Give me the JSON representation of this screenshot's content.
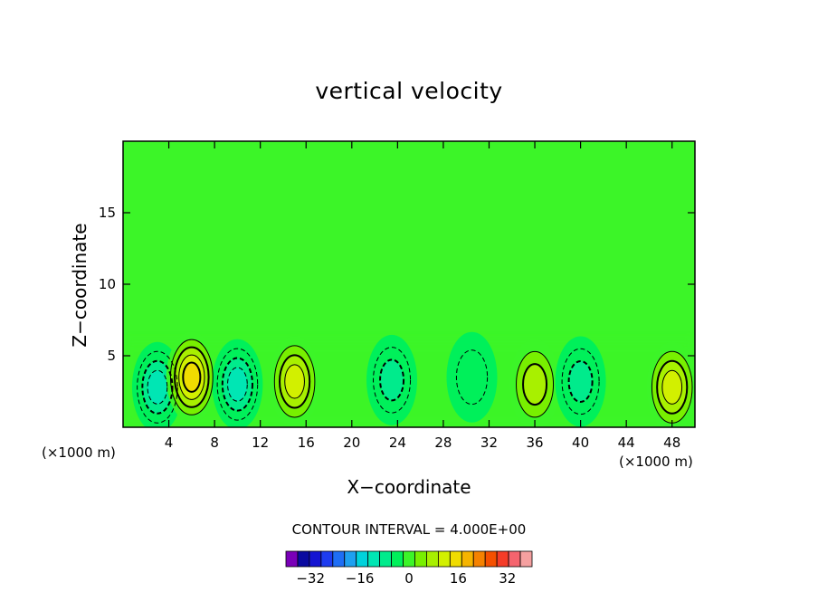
{
  "chart_data": {
    "type": "heatmap",
    "title": "vertical velocity",
    "xlabel": "X−coordinate",
    "ylabel": "Z−coordinate",
    "x_unit": "(×1000 m)",
    "xlim": [
      0,
      50
    ],
    "ylim": [
      0,
      20
    ],
    "xticks": [
      4,
      8,
      12,
      16,
      20,
      24,
      28,
      32,
      36,
      40,
      44,
      48
    ],
    "xtick_labels": [
      "4",
      "8",
      "12",
      "16",
      "20",
      "24",
      "28",
      "32",
      "36",
      "40",
      "44",
      "48"
    ],
    "yticks": [
      5,
      10,
      15
    ],
    "ytick_labels": [
      "5",
      "10",
      "15"
    ],
    "contour_interval_label": "CONTOUR INTERVAL = 4.000E+00",
    "contour_interval": 4,
    "colorbar": {
      "levels": [
        -40,
        -36,
        -32,
        -28,
        -24,
        -20,
        -16,
        -12,
        -8,
        -4,
        0,
        4,
        8,
        12,
        16,
        20,
        24,
        28,
        32,
        36,
        40
      ],
      "colors": [
        "#7a00b8",
        "#0a0aa0",
        "#1414d2",
        "#1e3cf0",
        "#1e6ef5",
        "#1ea0f0",
        "#00d2dc",
        "#00e6b4",
        "#00eb8c",
        "#00f05a",
        "#3cf528",
        "#78f000",
        "#a8f000",
        "#d2f000",
        "#f0dc00",
        "#f5b400",
        "#f58200",
        "#f55000",
        "#f53c28",
        "#f5646e",
        "#f5a0a0"
      ],
      "tick_labels": [
        "−32",
        "−16",
        "0",
        "16",
        "32"
      ],
      "tick_values": [
        -32,
        -16,
        0,
        16,
        32
      ]
    },
    "features": [
      {
        "x": 3,
        "z": 2.8,
        "value": -10
      },
      {
        "x": 6,
        "z": 3.5,
        "value": 14
      },
      {
        "x": 10,
        "z": 3.0,
        "value": -11
      },
      {
        "x": 15,
        "z": 3.2,
        "value": 10
      },
      {
        "x": 23.5,
        "z": 3.3,
        "value": -6
      },
      {
        "x": 30.5,
        "z": 3.5,
        "value": -3
      },
      {
        "x": 36,
        "z": 3.0,
        "value": 7
      },
      {
        "x": 40,
        "z": 3.2,
        "value": -8
      },
      {
        "x": 48,
        "z": 2.8,
        "value": 10
      }
    ],
    "background_value": 1
  }
}
